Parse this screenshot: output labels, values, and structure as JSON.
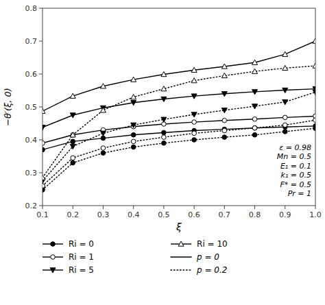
{
  "chart_data": {
    "type": "line",
    "x": [
      0.1,
      0.2,
      0.3,
      0.4,
      0.5,
      0.6,
      0.7,
      0.8,
      0.9,
      1.0
    ],
    "series": [
      {
        "name": "Ri = 0",
        "group": "p = 0",
        "color": "black",
        "marker": "circle",
        "line_style": "solid",
        "values": [
          0.37,
          0.395,
          0.405,
          0.415,
          0.422,
          0.428,
          0.432,
          0.436,
          0.439,
          0.442
        ]
      },
      {
        "name": "Ri = 1",
        "group": "p = 0",
        "color": "black",
        "marker": "open-circle",
        "line_style": "solid",
        "values": [
          0.39,
          0.415,
          0.43,
          0.44,
          0.448,
          0.454,
          0.459,
          0.463,
          0.468,
          0.472
        ]
      },
      {
        "name": "Ri = 5",
        "group": "p = 0",
        "color": "black",
        "marker": "triangle-down",
        "line_style": "solid",
        "values": [
          0.438,
          0.475,
          0.497,
          0.513,
          0.524,
          0.533,
          0.54,
          0.546,
          0.551,
          0.555
        ]
      },
      {
        "name": "Ri = 10",
        "group": "p = 0",
        "color": "black",
        "marker": "open-triangle-up",
        "line_style": "solid",
        "values": [
          0.487,
          0.533,
          0.563,
          0.583,
          0.599,
          0.612,
          0.623,
          0.635,
          0.66,
          0.7
        ]
      },
      {
        "name": "Ri = 0",
        "group": "p = 0.2",
        "color": "black",
        "marker": "circle",
        "line_style": "dotted",
        "values": [
          0.248,
          0.33,
          0.36,
          0.378,
          0.39,
          0.4,
          0.408,
          0.415,
          0.425,
          0.435
        ]
      },
      {
        "name": "Ri = 1",
        "group": "p = 0.2",
        "color": "black",
        "marker": "open-circle",
        "line_style": "dotted",
        "values": [
          0.26,
          0.345,
          0.375,
          0.395,
          0.408,
          0.42,
          0.428,
          0.436,
          0.445,
          0.46
        ]
      },
      {
        "name": "Ri = 5",
        "group": "p = 0.2",
        "color": "black",
        "marker": "triangle-down",
        "line_style": "dotted",
        "values": [
          0.275,
          0.38,
          0.42,
          0.445,
          0.462,
          0.477,
          0.49,
          0.502,
          0.515,
          0.545
        ]
      },
      {
        "name": "Ri = 10",
        "group": "p = 0.2",
        "color": "black",
        "marker": "open-triangle-up",
        "line_style": "dotted",
        "values": [
          0.285,
          0.415,
          0.49,
          0.53,
          0.555,
          0.58,
          0.595,
          0.608,
          0.618,
          0.625
        ]
      }
    ],
    "xlabel": "ξ",
    "ylabel": "−θ′(ξ, 0)",
    "xlim": [
      0.1,
      1.0
    ],
    "ylim": [
      0.2,
      0.8
    ],
    "xticks": [
      0.1,
      0.2,
      0.3,
      0.4,
      0.5,
      0.6,
      0.7,
      0.8,
      0.9,
      {
        "value": 1.0,
        "label": "1.0"
      }
    ],
    "yticks": [
      0.2,
      0.3,
      0.4,
      0.5,
      0.6,
      0.7,
      0.8
    ],
    "annotations": [
      "ε = 0.98",
      "Mn = 0.5",
      "E₁ = 0.1",
      "k₁ = 0.5",
      "F* = 0.5",
      "Pr = 1"
    ],
    "grid": false,
    "legend": "bottom"
  }
}
